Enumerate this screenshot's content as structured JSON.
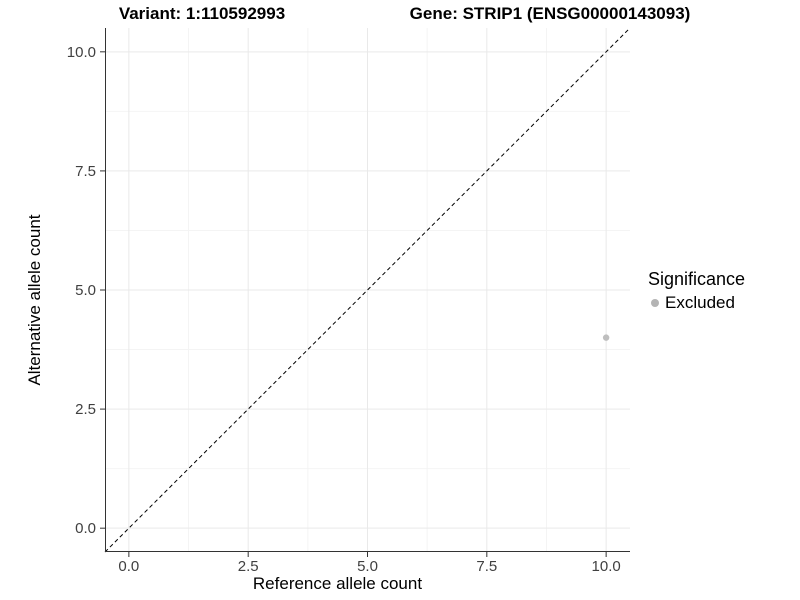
{
  "chart_data": {
    "type": "scatter",
    "titles": {
      "left": "Variant: 1:110592993",
      "right": "Gene: STRIP1 (ENSG00000143093)"
    },
    "xlabel": "Reference allele count",
    "ylabel": "Alternative allele count",
    "xlim": [
      -0.5,
      10.5
    ],
    "ylim": [
      -0.5,
      10.5
    ],
    "x_ticks": {
      "values": [
        0,
        2.5,
        5,
        7.5,
        10
      ],
      "labels": [
        "0.0",
        "2.5",
        "5.0",
        "7.5",
        "10.0"
      ]
    },
    "y_ticks": {
      "values": [
        0,
        2.5,
        5,
        7.5,
        10
      ],
      "labels": [
        "0.0",
        "2.5",
        "5.0",
        "7.5",
        "10.0"
      ]
    },
    "x_minor": [
      1.25,
      3.75,
      6.25,
      8.75
    ],
    "y_minor": [
      1.25,
      3.75,
      6.25,
      8.75
    ],
    "grid": "major+minor",
    "series": [
      {
        "name": "Excluded",
        "color": "#bebebe",
        "points": [
          {
            "x": 10,
            "y": 4
          }
        ]
      }
    ],
    "reference_line": {
      "slope": 1,
      "intercept": 0,
      "style": "dashed",
      "color": "#000000"
    },
    "legend": {
      "title": "Significance",
      "position": "right",
      "items": [
        {
          "label": "Excluded",
          "color": "#b4b4b4"
        }
      ]
    },
    "colors": {
      "axis_line": "#333333",
      "tick_label": "#404040",
      "grid_major": "#e9e9e9",
      "grid_minor": "#f4f4f4",
      "background": "#ffffff"
    }
  }
}
